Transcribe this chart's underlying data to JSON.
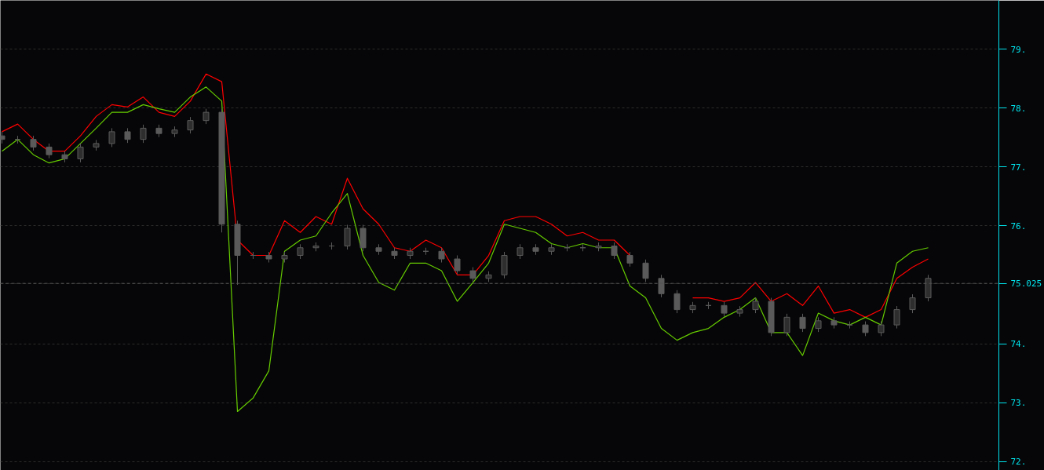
{
  "chart_data": {
    "type": "candlestick",
    "ylim": [
      71.85,
      79.83
    ],
    "tick_labels": "y",
    "grid": "y",
    "categories": [
      null,
      null,
      null,
      null,
      null,
      null,
      null,
      null,
      null,
      null,
      null,
      null,
      null,
      null,
      null,
      null,
      null,
      null,
      null,
      null,
      null,
      null,
      null,
      null,
      null,
      null,
      null,
      null,
      null,
      null,
      null,
      null,
      null,
      null,
      null,
      null,
      null,
      null,
      null,
      null,
      null,
      null,
      null,
      null,
      null,
      null,
      null,
      null,
      null,
      null,
      null,
      null,
      null,
      null,
      null,
      null,
      null,
      null,
      null,
      null
    ],
    "yticks": [
      {
        "value": 72,
        "label": "72."
      },
      {
        "value": 73,
        "label": "73."
      },
      {
        "value": 74,
        "label": "74."
      },
      {
        "value": 75.025,
        "label": "75.025"
      },
      {
        "value": 76,
        "label": "76."
      },
      {
        "value": 77,
        "label": "77."
      },
      {
        "value": 78,
        "label": "78."
      },
      {
        "value": 79,
        "label": "79."
      }
    ],
    "ref_lines": [
      {
        "axis": "y",
        "value": 75.025,
        "color": "#555555",
        "line_style": "dashed"
      }
    ],
    "series": [
      {
        "color": "#5a5a5a",
        "ohlc": [
          [
            77.53,
            77.6,
            77.4,
            77.47
          ],
          [
            77.47,
            77.53,
            77.4,
            77.47
          ],
          [
            77.47,
            77.53,
            77.28,
            77.34
          ],
          [
            77.34,
            77.4,
            77.15,
            77.21
          ],
          [
            77.21,
            77.27,
            77.08,
            77.14
          ],
          [
            77.14,
            77.4,
            77.08,
            77.34
          ],
          [
            77.34,
            77.46,
            77.28,
            77.4
          ],
          [
            77.4,
            77.66,
            77.34,
            77.6
          ],
          [
            77.6,
            77.66,
            77.41,
            77.47
          ],
          [
            77.47,
            77.72,
            77.41,
            77.66
          ],
          [
            77.66,
            77.72,
            77.51,
            77.57
          ],
          [
            77.57,
            77.69,
            77.51,
            77.63
          ],
          [
            77.63,
            77.85,
            77.57,
            77.79
          ],
          [
            77.79,
            77.99,
            77.73,
            77.93
          ],
          [
            77.93,
            77.99,
            75.89,
            76.03
          ],
          [
            76.03,
            76.09,
            75.0,
            75.5
          ],
          [
            75.5,
            75.56,
            75.44,
            75.5
          ],
          [
            75.5,
            75.56,
            75.38,
            75.44
          ],
          [
            75.44,
            75.56,
            75.38,
            75.5
          ],
          [
            75.5,
            75.69,
            75.44,
            75.63
          ],
          [
            75.63,
            75.72,
            75.57,
            75.66
          ],
          [
            75.66,
            75.72,
            75.6,
            75.66
          ],
          [
            75.66,
            76.02,
            75.6,
            75.96
          ],
          [
            75.96,
            76.02,
            75.57,
            75.63
          ],
          [
            75.63,
            75.69,
            75.51,
            75.57
          ],
          [
            75.57,
            75.63,
            75.44,
            75.5
          ],
          [
            75.5,
            75.63,
            75.44,
            75.57
          ],
          [
            75.57,
            75.63,
            75.51,
            75.57
          ],
          [
            75.57,
            75.63,
            75.38,
            75.44
          ],
          [
            75.44,
            75.5,
            75.18,
            75.24
          ],
          [
            75.24,
            75.3,
            75.05,
            75.11
          ],
          [
            75.11,
            75.23,
            75.05,
            75.17
          ],
          [
            75.17,
            75.56,
            75.11,
            75.5
          ],
          [
            75.5,
            75.69,
            75.44,
            75.63
          ],
          [
            75.63,
            75.69,
            75.51,
            75.57
          ],
          [
            75.57,
            75.69,
            75.51,
            75.63
          ],
          [
            75.63,
            75.69,
            75.57,
            75.63
          ],
          [
            75.63,
            75.69,
            75.57,
            75.63
          ],
          [
            75.63,
            75.72,
            75.57,
            75.66
          ],
          [
            75.66,
            75.72,
            75.44,
            75.5
          ],
          [
            75.5,
            75.56,
            75.31,
            75.37
          ],
          [
            75.37,
            75.43,
            75.05,
            75.11
          ],
          [
            75.11,
            75.17,
            74.79,
            74.85
          ],
          [
            74.85,
            74.91,
            74.52,
            74.58
          ],
          [
            74.58,
            74.71,
            74.52,
            74.65
          ],
          [
            74.65,
            74.71,
            74.59,
            74.65
          ],
          [
            74.65,
            74.71,
            74.46,
            74.52
          ],
          [
            74.52,
            74.64,
            74.46,
            74.58
          ],
          [
            74.58,
            74.78,
            74.52,
            74.72
          ],
          [
            74.72,
            74.78,
            74.13,
            74.19
          ],
          [
            74.19,
            74.51,
            74.13,
            74.45
          ],
          [
            74.45,
            74.51,
            74.2,
            74.26
          ],
          [
            74.26,
            74.45,
            74.2,
            74.39
          ],
          [
            74.39,
            74.45,
            74.26,
            74.32
          ],
          [
            74.32,
            74.38,
            74.26,
            74.32
          ],
          [
            74.32,
            74.38,
            74.13,
            74.19
          ],
          [
            74.19,
            74.38,
            74.13,
            74.32
          ],
          [
            74.32,
            74.64,
            74.26,
            74.58
          ],
          [
            74.58,
            74.84,
            74.52,
            74.78
          ],
          [
            74.78,
            75.17,
            74.72,
            75.11
          ]
        ]
      },
      {
        "type": "line",
        "color": "#ff0000",
        "values": [
          77.6,
          77.73,
          77.47,
          77.27,
          77.27,
          77.53,
          77.86,
          78.06,
          78.02,
          78.19,
          77.93,
          77.86,
          78.12,
          78.58,
          78.45,
          75.76,
          75.5,
          75.5,
          76.09,
          75.89,
          76.16,
          76.03,
          76.81,
          76.29,
          76.03,
          75.63,
          75.57,
          75.76,
          75.63,
          75.17,
          75.17,
          75.5,
          76.09,
          76.16,
          76.16,
          76.03,
          75.83,
          75.89,
          75.76,
          75.76,
          75.5,
          null,
          null,
          null,
          74.78,
          74.78,
          74.72,
          74.78,
          75.04,
          74.72,
          74.85,
          74.65,
          74.98,
          74.52,
          74.58,
          74.45,
          74.58,
          75.11,
          75.3,
          75.44
        ]
      },
      {
        "type": "line",
        "color": "#66cc00",
        "values": [
          77.27,
          77.47,
          77.21,
          77.07,
          77.14,
          77.4,
          77.66,
          77.93,
          77.93,
          78.06,
          77.99,
          77.93,
          78.19,
          78.36,
          78.12,
          72.85,
          73.08,
          73.54,
          75.57,
          75.76,
          75.83,
          76.22,
          76.55,
          75.5,
          75.04,
          74.91,
          75.37,
          75.37,
          75.24,
          74.72,
          75.04,
          75.37,
          76.03,
          75.96,
          75.89,
          75.7,
          75.63,
          75.7,
          75.63,
          75.63,
          74.98,
          74.78,
          74.26,
          74.06,
          74.19,
          74.26,
          74.45,
          74.58,
          74.78,
          74.19,
          74.19,
          73.8,
          74.52,
          74.39,
          74.32,
          74.45,
          74.32,
          75.37,
          75.57,
          75.63
        ]
      }
    ]
  }
}
